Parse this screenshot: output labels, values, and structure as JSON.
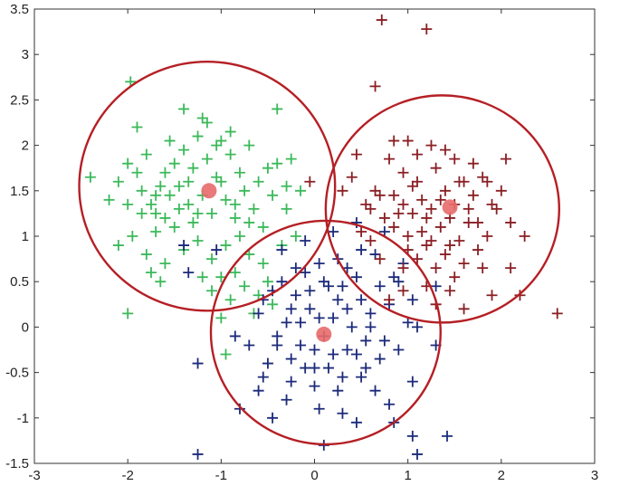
{
  "chart_data": {
    "type": "scatter",
    "title": "",
    "xlabel": "",
    "ylabel": "",
    "xlim": [
      -3,
      3
    ],
    "ylim": [
      -1.5,
      3.5
    ],
    "grid": false,
    "legend": "none",
    "x_ticks": [
      -3,
      -2,
      -1,
      0,
      1,
      2,
      3
    ],
    "x_tick_labels": [
      "-3",
      "-2",
      "-1",
      "0",
      "1",
      "2",
      "3"
    ],
    "y_ticks": [
      -1.5,
      -1,
      -0.5,
      0,
      0.5,
      1,
      1.5,
      2,
      2.5,
      3,
      3.5
    ],
    "y_tick_labels": [
      "-1.5",
      "-1",
      "-0.5",
      "0",
      "0.5",
      "1",
      "1.5",
      "2",
      "2.5",
      "3",
      "3.5"
    ],
    "series": [
      {
        "marker": "plus",
        "color": "#3cb95a",
        "points": [
          [
            -1.97,
            2.7
          ],
          [
            -1.9,
            2.2
          ],
          [
            -2.4,
            1.65
          ],
          [
            -2.2,
            1.4
          ],
          [
            -2.1,
            1.6
          ],
          [
            -2.0,
            1.8
          ],
          [
            -1.9,
            1.7
          ],
          [
            -1.85,
            1.5
          ],
          [
            -1.8,
            1.9
          ],
          [
            -1.75,
            1.35
          ],
          [
            -1.7,
            1.25
          ],
          [
            -1.65,
            1.55
          ],
          [
            -1.6,
            1.7
          ],
          [
            -1.55,
            1.45
          ],
          [
            -1.5,
            1.8
          ],
          [
            -1.45,
            1.3
          ],
          [
            -1.4,
            1.95
          ],
          [
            -1.35,
            1.6
          ],
          [
            -1.3,
            1.75
          ],
          [
            -1.25,
            2.1
          ],
          [
            -1.2,
            1.45
          ],
          [
            -1.15,
            1.85
          ],
          [
            -1.1,
            1.25
          ],
          [
            -1.05,
            2.0
          ],
          [
            -1.0,
            1.6
          ],
          [
            -0.95,
            1.4
          ],
          [
            -0.9,
            1.9
          ],
          [
            -0.85,
            1.2
          ],
          [
            -0.8,
            1.7
          ],
          [
            -0.75,
            1.5
          ],
          [
            -0.7,
            2.0
          ],
          [
            -0.65,
            1.3
          ],
          [
            -0.6,
            1.6
          ],
          [
            -0.55,
            1.1
          ],
          [
            -0.5,
            1.75
          ],
          [
            -0.45,
            1.45
          ],
          [
            -0.4,
            2.4
          ],
          [
            -0.4,
            1.8
          ],
          [
            -0.3,
            1.3
          ],
          [
            -0.3,
            1.55
          ],
          [
            -0.2,
            1.0
          ],
          [
            -0.35,
            0.9
          ],
          [
            -1.4,
            2.4
          ],
          [
            -1.2,
            2.3
          ],
          [
            -1.15,
            2.25
          ],
          [
            -0.9,
            2.15
          ],
          [
            -1.0,
            2.05
          ],
          [
            -1.7,
            1.05
          ],
          [
            -1.8,
            0.8
          ],
          [
            -1.95,
            1.0
          ],
          [
            -2.1,
            0.9
          ],
          [
            -1.6,
            0.7
          ],
          [
            -1.5,
            1.1
          ],
          [
            -1.4,
            0.85
          ],
          [
            -1.3,
            1.15
          ],
          [
            -1.25,
            0.95
          ],
          [
            -1.1,
            0.75
          ],
          [
            -1.0,
            0.55
          ],
          [
            -0.95,
            0.9
          ],
          [
            -0.85,
            0.6
          ],
          [
            -0.8,
            1.0
          ],
          [
            -0.75,
            0.45
          ],
          [
            -0.7,
            0.8
          ],
          [
            -0.6,
            0.35
          ],
          [
            -0.55,
            0.7
          ],
          [
            -0.5,
            0.5
          ],
          [
            -0.45,
            0.25
          ],
          [
            -0.9,
            0.3
          ],
          [
            -1.0,
            0.1
          ],
          [
            -1.1,
            0.4
          ],
          [
            -1.2,
            0.55
          ],
          [
            -0.65,
            0.15
          ],
          [
            -2.0,
            0.15
          ],
          [
            -1.6,
            1.2
          ],
          [
            -1.45,
            1.55
          ],
          [
            -1.7,
            1.45
          ],
          [
            -1.35,
            1.35
          ],
          [
            -1.25,
            1.25
          ],
          [
            -1.05,
            1.65
          ],
          [
            -1.55,
            2.05
          ],
          [
            -1.85,
            1.25
          ],
          [
            -2.0,
            1.35
          ],
          [
            -0.7,
            1.15
          ],
          [
            -0.25,
            1.85
          ],
          [
            -0.15,
            1.5
          ],
          [
            -0.85,
            1.35
          ],
          [
            -1.65,
            0.5
          ],
          [
            -1.75,
            0.6
          ],
          [
            -0.95,
            -0.3
          ]
        ]
      },
      {
        "marker": "plus",
        "color": "#1c2a7a",
        "points": [
          [
            -1.25,
            -1.4
          ],
          [
            -1.25,
            -0.4
          ],
          [
            -1.35,
            0.6
          ],
          [
            -1.4,
            0.9
          ],
          [
            -1.05,
            0.85
          ],
          [
            -0.85,
            -0.1
          ],
          [
            -0.8,
            -0.9
          ],
          [
            -0.6,
            -0.7
          ],
          [
            -0.55,
            0.3
          ],
          [
            -0.5,
            -0.4
          ],
          [
            -0.45,
            -1.0
          ],
          [
            -0.4,
            -0.1
          ],
          [
            -0.35,
            0.5
          ],
          [
            -0.3,
            0.05
          ],
          [
            -0.25,
            -0.6
          ],
          [
            -0.2,
            0.35
          ],
          [
            -0.15,
            -0.2
          ],
          [
            -0.1,
            0.6
          ],
          [
            -0.05,
            0.2
          ],
          [
            0.0,
            -0.45
          ],
          [
            0.05,
            0.1
          ],
          [
            0.1,
            -0.1
          ],
          [
            0.15,
            0.45
          ],
          [
            0.2,
            -0.3
          ],
          [
            0.25,
            0.3
          ],
          [
            0.3,
            -0.55
          ],
          [
            0.35,
            0.65
          ],
          [
            0.4,
            0.0
          ],
          [
            0.45,
            -0.3
          ],
          [
            0.5,
            0.3
          ],
          [
            0.55,
            -0.45
          ],
          [
            0.6,
            0.15
          ],
          [
            0.65,
            -0.7
          ],
          [
            0.7,
            0.45
          ],
          [
            0.75,
            -0.15
          ],
          [
            0.8,
            -0.85
          ],
          [
            0.85,
            0.55
          ],
          [
            0.9,
            -0.25
          ],
          [
            0.95,
            0.7
          ],
          [
            1.0,
            0.05
          ],
          [
            1.05,
            -0.6
          ],
          [
            1.1,
            0.0
          ],
          [
            0.45,
            1.15
          ],
          [
            0.2,
            1.05
          ],
          [
            -0.1,
            0.95
          ],
          [
            -0.35,
            0.85
          ],
          [
            0.5,
            0.85
          ],
          [
            0.75,
            1.05
          ],
          [
            0.05,
            0.7
          ],
          [
            -0.6,
            0.15
          ],
          [
            -0.7,
            -0.2
          ],
          [
            -0.25,
            -0.35
          ],
          [
            0.0,
            -0.65
          ],
          [
            0.25,
            -0.7
          ],
          [
            0.3,
            -0.95
          ],
          [
            0.45,
            -1.05
          ],
          [
            0.1,
            -1.3
          ],
          [
            0.85,
            -1.05
          ],
          [
            1.05,
            -1.2
          ],
          [
            1.1,
            -1.4
          ],
          [
            1.42,
            -1.2
          ],
          [
            0.7,
            -0.35
          ],
          [
            0.6,
            0.0
          ],
          [
            0.35,
            0.2
          ],
          [
            -0.15,
            0.05
          ],
          [
            -0.4,
            -0.2
          ],
          [
            -0.55,
            -0.55
          ],
          [
            -0.1,
            -0.45
          ],
          [
            0.15,
            -0.45
          ],
          [
            0.5,
            -0.55
          ],
          [
            0.9,
            0.5
          ],
          [
            0.8,
            0.25
          ],
          [
            0.65,
            0.8
          ],
          [
            0.45,
            0.55
          ],
          [
            0.25,
            0.75
          ],
          [
            0.1,
            0.5
          ],
          [
            0.3,
            0.45
          ],
          [
            -0.05,
            0.4
          ],
          [
            -0.2,
            0.65
          ],
          [
            -0.45,
            0.4
          ],
          [
            1.3,
            -0.2
          ],
          [
            1.3,
            0.45
          ],
          [
            1.05,
            0.3
          ],
          [
            -0.3,
            -0.8
          ],
          [
            0.05,
            -0.9
          ],
          [
            0.0,
            -0.25
          ],
          [
            0.35,
            -0.25
          ],
          [
            0.55,
            -0.15
          ],
          [
            0.2,
            0.1
          ],
          [
            -0.25,
            0.2
          ]
        ]
      },
      {
        "marker": "plus",
        "color": "#8a1f24",
        "points": [
          [
            0.72,
            3.38
          ],
          [
            1.2,
            3.28
          ],
          [
            0.65,
            2.65
          ],
          [
            0.85,
            2.05
          ],
          [
            1.0,
            2.05
          ],
          [
            1.25,
            2.0
          ],
          [
            0.8,
            1.85
          ],
          [
            0.95,
            1.7
          ],
          [
            1.1,
            1.6
          ],
          [
            1.3,
            1.75
          ],
          [
            1.4,
            1.5
          ],
          [
            1.5,
            1.85
          ],
          [
            1.6,
            1.6
          ],
          [
            1.7,
            1.45
          ],
          [
            1.8,
            1.65
          ],
          [
            1.9,
            1.35
          ],
          [
            2.0,
            1.5
          ],
          [
            2.05,
            1.85
          ],
          [
            0.7,
            1.45
          ],
          [
            0.75,
            1.2
          ],
          [
            0.85,
            1.1
          ],
          [
            0.95,
            1.35
          ],
          [
            1.05,
            1.25
          ],
          [
            1.15,
            1.05
          ],
          [
            1.25,
            1.3
          ],
          [
            1.35,
            1.1
          ],
          [
            1.45,
            1.2
          ],
          [
            1.55,
            0.95
          ],
          [
            1.65,
            1.15
          ],
          [
            1.75,
            0.85
          ],
          [
            1.85,
            1.0
          ],
          [
            1.95,
            1.3
          ],
          [
            2.1,
            1.15
          ],
          [
            2.25,
            1.0
          ],
          [
            1.1,
            0.75
          ],
          [
            1.2,
            0.9
          ],
          [
            1.3,
            0.65
          ],
          [
            1.4,
            0.8
          ],
          [
            1.5,
            0.55
          ],
          [
            1.6,
            0.7
          ],
          [
            1.8,
            0.65
          ],
          [
            1.9,
            0.35
          ],
          [
            2.1,
            0.65
          ],
          [
            2.6,
            0.15
          ],
          [
            2.2,
            0.35
          ],
          [
            0.5,
            1.05
          ],
          [
            0.6,
            0.95
          ],
          [
            0.7,
            0.75
          ],
          [
            1.0,
            0.85
          ],
          [
            1.35,
            1.4
          ],
          [
            1.5,
            1.35
          ],
          [
            1.65,
            1.3
          ],
          [
            1.2,
            1.2
          ],
          [
            1.05,
            1.55
          ],
          [
            0.9,
            1.25
          ],
          [
            0.45,
            1.9
          ],
          [
            0.4,
            1.65
          ],
          [
            0.65,
            1.5
          ],
          [
            1.1,
            1.9
          ],
          [
            1.4,
            1.95
          ],
          [
            1.7,
            1.8
          ],
          [
            0.95,
            0.4
          ],
          [
            1.2,
            0.45
          ],
          [
            1.3,
            0.25
          ],
          [
            1.45,
            0.4
          ],
          [
            0.95,
            0.65
          ],
          [
            1.55,
            1.6
          ],
          [
            1.15,
            1.4
          ],
          [
            1.25,
            0.95
          ],
          [
            1.45,
            0.9
          ],
          [
            0.85,
            1.45
          ],
          [
            0.6,
            1.3
          ],
          [
            0.8,
            0.3
          ],
          [
            1.0,
            1.0
          ],
          [
            1.6,
            0.2
          ],
          [
            1.75,
            1.15
          ],
          [
            0.3,
            1.5
          ],
          [
            1.85,
            1.6
          ],
          [
            0.55,
            1.35
          ],
          [
            -0.05,
            1.6
          ]
        ]
      }
    ],
    "centroids": {
      "color": "#e86a6a",
      "points": [
        [
          -1.13,
          1.5
        ],
        [
          0.1,
          -0.08
        ],
        [
          1.45,
          1.32
        ]
      ]
    },
    "circles": {
      "color": "#b51f24",
      "items": [
        {
          "cx": -1.15,
          "cy": 1.55,
          "r": 1.37
        },
        {
          "cx": 0.12,
          "cy": -0.06,
          "r": 1.23
        },
        {
          "cx": 1.37,
          "cy": 1.3,
          "r": 1.25
        }
      ]
    }
  }
}
